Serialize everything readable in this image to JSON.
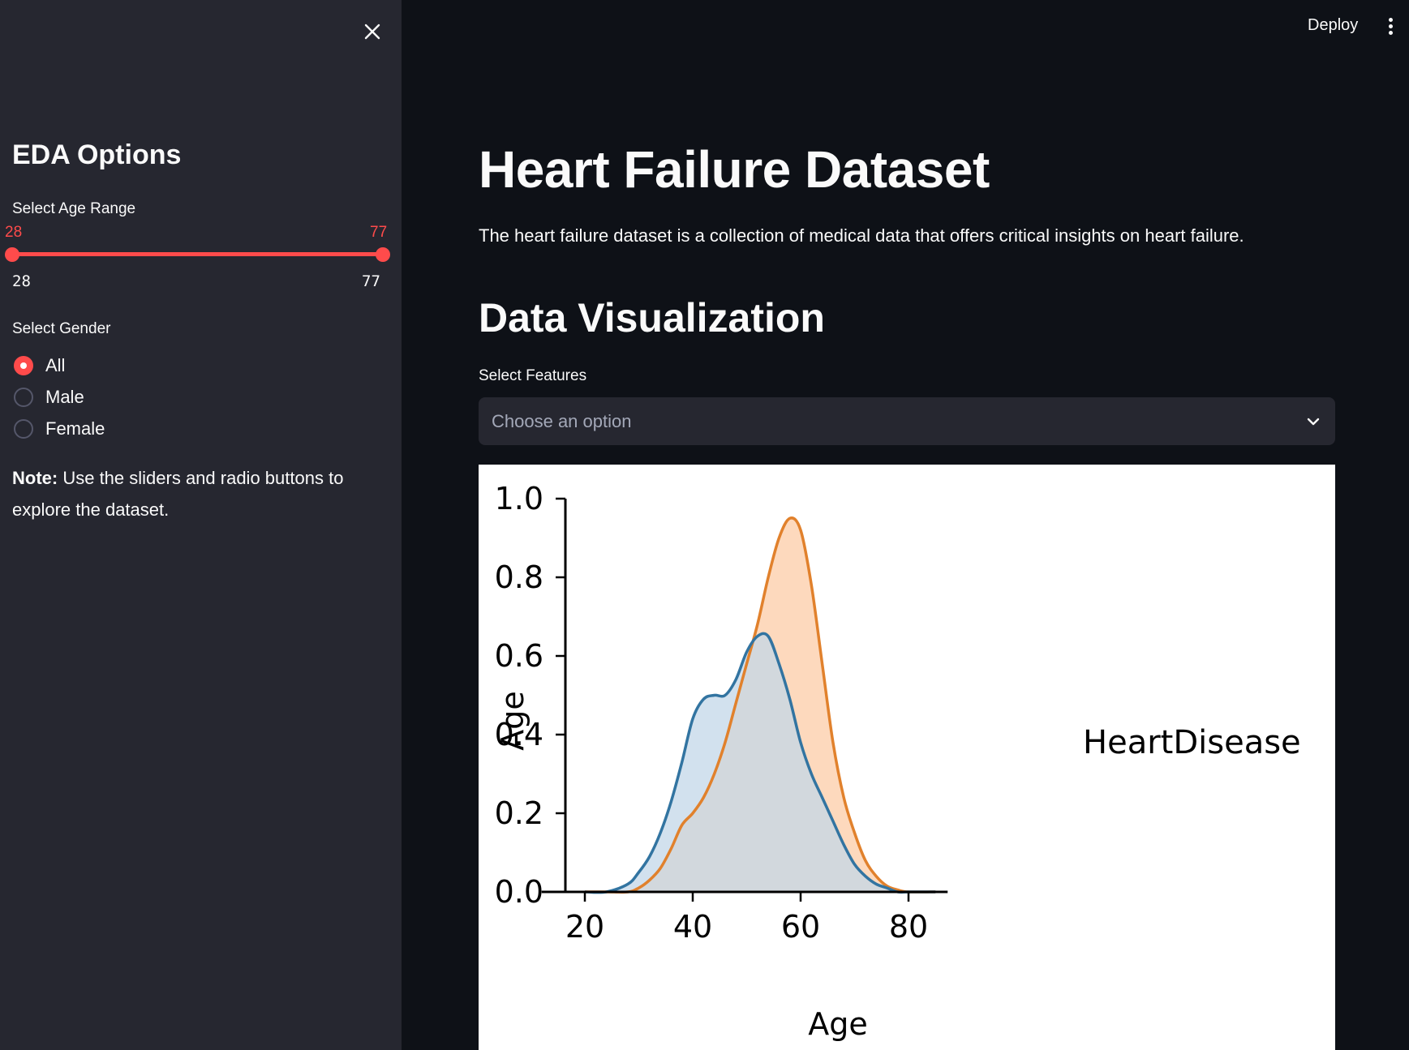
{
  "sidebar": {
    "title": "EDA Options",
    "age_range": {
      "label": "Select Age Range",
      "low_value": "28",
      "high_value": "77",
      "min_tick": "28",
      "max_tick": "77"
    },
    "gender": {
      "label": "Select Gender",
      "options": [
        "All",
        "Male",
        "Female"
      ],
      "selected": "All"
    },
    "note": {
      "bold": "Note:",
      "text": " Use the sliders and radio buttons to explore the dataset."
    }
  },
  "header": {
    "deploy_label": "Deploy"
  },
  "main": {
    "title": "Heart Failure Dataset",
    "description": "The heart failure dataset is a collection of medical data that offers critical insights on heart failure.",
    "subtitle": "Data Visualization",
    "features": {
      "label": "Select Features",
      "placeholder": "Choose an option"
    }
  },
  "colors": {
    "accent": "#ff4b4b",
    "series_0_line": "#3274a1",
    "series_0_fill": "#c3d7e8",
    "series_1_line": "#e1812c",
    "series_1_fill": "#fdd9bd",
    "overlap_fill": "#c7c4bf"
  },
  "chart_data": {
    "type": "area",
    "title": "",
    "xlabel": "Age",
    "ylabel": "Age",
    "legend_title": "HeartDisease",
    "legend_placement": "right",
    "xlim": [
      15,
      85
    ],
    "ylim": [
      0,
      1.0
    ],
    "x_ticks": [
      20,
      40,
      60,
      80
    ],
    "y_ticks": [
      "0.0",
      "0.2",
      "0.4",
      "0.6",
      "0.8",
      "1.0"
    ],
    "grid": false,
    "x": [
      20,
      24,
      28,
      30,
      32,
      34,
      36,
      38,
      40,
      42,
      44,
      46,
      48,
      50,
      52,
      54,
      56,
      58,
      60,
      62,
      64,
      66,
      68,
      70,
      72,
      74,
      76,
      78,
      80,
      85
    ],
    "series": [
      {
        "values": [
          0.0,
          0.0,
          0.02,
          0.05,
          0.09,
          0.15,
          0.23,
          0.33,
          0.44,
          0.49,
          0.5,
          0.5,
          0.54,
          0.61,
          0.65,
          0.65,
          0.58,
          0.49,
          0.38,
          0.3,
          0.24,
          0.18,
          0.12,
          0.07,
          0.04,
          0.02,
          0.01,
          0.0,
          0.0,
          0.0
        ]
      },
      {
        "values": [
          0.0,
          0.0,
          0.0,
          0.01,
          0.03,
          0.06,
          0.11,
          0.17,
          0.2,
          0.24,
          0.3,
          0.38,
          0.48,
          0.58,
          0.68,
          0.8,
          0.9,
          0.95,
          0.92,
          0.78,
          0.58,
          0.38,
          0.24,
          0.15,
          0.08,
          0.04,
          0.015,
          0.005,
          0.0,
          0.0
        ]
      }
    ]
  }
}
